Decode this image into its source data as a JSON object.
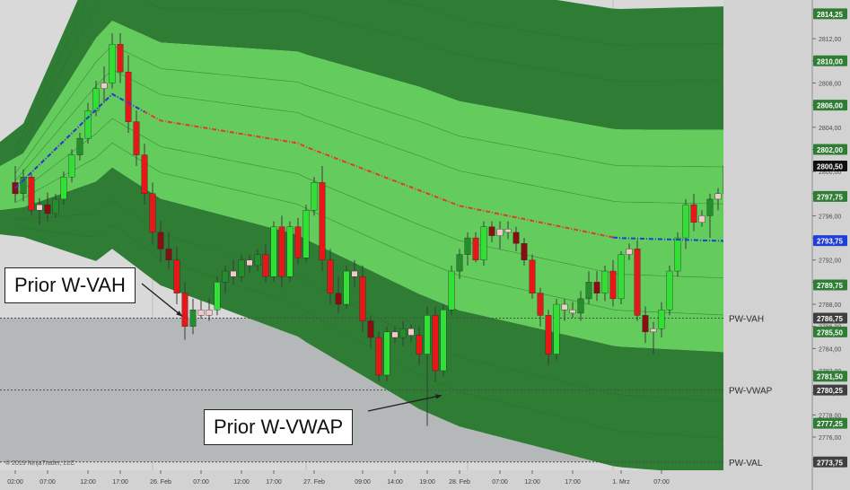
{
  "chart_data": {
    "type": "candlestick",
    "title": "",
    "copyright": "© 2019 NinjaTrader, LLC",
    "y_axis": {
      "position": "right",
      "range": [
        2773.0,
        2815.5
      ],
      "ticks": [
        "2812,00",
        "2810,00",
        "2808,00",
        "2806,00",
        "2804,00",
        "2802,00",
        "2800,00",
        "2798,00",
        "2796,00",
        "2794,00",
        "2792,00",
        "2790,00",
        "2788,00",
        "2786,00",
        "2784,00",
        "2782,00",
        "2780,00",
        "2778,00",
        "2776,00",
        "2774,00"
      ],
      "tick_values": [
        2812,
        2810,
        2808,
        2806,
        2804,
        2802,
        2800,
        2798,
        2796,
        2794,
        2792,
        2790,
        2788,
        2786,
        2784,
        2782,
        2780,
        2778,
        2776,
        2774
      ]
    },
    "x_axis": {
      "labels": [
        {
          "text": "02:00",
          "i": 0
        },
        {
          "text": "07:00",
          "i": 4
        },
        {
          "text": "12:00",
          "i": 9
        },
        {
          "text": "17:00",
          "i": 13
        },
        {
          "text": "26. Feb",
          "i": 18
        },
        {
          "text": "07:00",
          "i": 23
        },
        {
          "text": "12:00",
          "i": 28
        },
        {
          "text": "17:00",
          "i": 32
        },
        {
          "text": "27. Feb",
          "i": 37
        },
        {
          "text": "09:00",
          "i": 43
        },
        {
          "text": "14:00",
          "i": 47
        },
        {
          "text": "19:00",
          "i": 51
        },
        {
          "text": "28. Feb",
          "i": 55
        },
        {
          "text": "07:00",
          "i": 60
        },
        {
          "text": "12:00",
          "i": 64
        },
        {
          "text": "17:00",
          "i": 69
        },
        {
          "text": "1. Mrz",
          "i": 75
        },
        {
          "text": "07:00",
          "i": 80
        }
      ],
      "session_separators": [
        17,
        36,
        56,
        74
      ]
    },
    "price_labels": [
      {
        "value": "2814,25",
        "price": 2814.25,
        "style": "green"
      },
      {
        "value": "2810,00",
        "price": 2810.0,
        "style": "green"
      },
      {
        "value": "2806,00",
        "price": 2806.0,
        "style": "green"
      },
      {
        "value": "2802,00",
        "price": 2802.0,
        "style": "green"
      },
      {
        "value": "2800,50",
        "price": 2800.5,
        "style": "black"
      },
      {
        "value": "2797,75",
        "price": 2797.75,
        "style": "green"
      },
      {
        "value": "2793,75",
        "price": 2793.75,
        "style": "blue"
      },
      {
        "value": "2789,75",
        "price": 2789.75,
        "style": "green"
      },
      {
        "value": "2786,75",
        "price": 2786.75,
        "style": "gray"
      },
      {
        "value": "2785,50",
        "price": 2785.5,
        "style": "green"
      },
      {
        "value": "2781,50",
        "price": 2781.5,
        "style": "green"
      },
      {
        "value": "2780,25",
        "price": 2780.25,
        "style": "gray"
      },
      {
        "value": "2777,25",
        "price": 2777.25,
        "style": "green"
      },
      {
        "value": "2773,75",
        "price": 2773.75,
        "style": "gray"
      }
    ],
    "levels": [
      {
        "name": "PW-VAH",
        "price": 2786.75
      },
      {
        "name": "PW-VWAP",
        "price": 2780.25
      },
      {
        "name": "PW-VAL",
        "price": 2773.75
      }
    ],
    "candles": [
      [
        2799.0,
        2800.5,
        2797.2,
        2798.0
      ],
      [
        2798.0,
        2800.2,
        2797.3,
        2799.5
      ],
      [
        2799.5,
        2799.8,
        2796.0,
        2796.5
      ],
      [
        2796.5,
        2797.6,
        2795.2,
        2797.0
      ],
      [
        2797.0,
        2798.1,
        2795.5,
        2796.2
      ],
      [
        2796.2,
        2798.0,
        2795.8,
        2797.5
      ],
      [
        2797.5,
        2800.0,
        2797.0,
        2799.5
      ],
      [
        2799.5,
        2802.0,
        2799.0,
        2801.5
      ],
      [
        2801.5,
        2803.5,
        2801.0,
        2803.0
      ],
      [
        2803.0,
        2806.2,
        2802.5,
        2805.5
      ],
      [
        2805.5,
        2808.2,
        2805.0,
        2807.5
      ],
      [
        2807.5,
        2809.5,
        2806.3,
        2808.0
      ],
      [
        2808.0,
        2812.5,
        2807.5,
        2811.5
      ],
      [
        2811.5,
        2812.5,
        2808.0,
        2809.0
      ],
      [
        2809.0,
        2810.5,
        2803.5,
        2804.5
      ],
      [
        2804.5,
        2805.5,
        2800.5,
        2801.5
      ],
      [
        2801.5,
        2802.5,
        2797.0,
        2798.0
      ],
      [
        2798.0,
        2799.0,
        2793.5,
        2794.5
      ],
      [
        2794.5,
        2795.5,
        2791.8,
        2793.0
      ],
      [
        2793.0,
        2794.5,
        2791.2,
        2792.0
      ],
      [
        2792.0,
        2793.2,
        2788.0,
        2789.0
      ],
      [
        2789.0,
        2790.0,
        2784.8,
        2786.0
      ],
      [
        2786.0,
        2788.5,
        2785.3,
        2787.5
      ],
      [
        2787.5,
        2788.4,
        2786.7,
        2787.0
      ],
      [
        2787.0,
        2788.5,
        2786.5,
        2787.5
      ],
      [
        2787.5,
        2790.5,
        2787.0,
        2790.0
      ],
      [
        2790.0,
        2791.5,
        2789.0,
        2791.0
      ],
      [
        2791.0,
        2792.0,
        2789.8,
        2790.5
      ],
      [
        2790.5,
        2792.5,
        2790.0,
        2792.0
      ],
      [
        2792.0,
        2792.5,
        2790.8,
        2791.5
      ],
      [
        2791.5,
        2793.0,
        2791.0,
        2792.5
      ],
      [
        2792.5,
        2793.5,
        2790.0,
        2790.5
      ],
      [
        2790.5,
        2795.5,
        2790.0,
        2795.0
      ],
      [
        2795.0,
        2796.0,
        2789.5,
        2790.5
      ],
      [
        2790.5,
        2795.5,
        2790.0,
        2795.0
      ],
      [
        2795.0,
        2795.8,
        2791.6,
        2792.2
      ],
      [
        2792.2,
        2797.0,
        2791.8,
        2796.5
      ],
      [
        2796.5,
        2799.5,
        2796.0,
        2799.0
      ],
      [
        2799.0,
        2800.5,
        2791.0,
        2792.0
      ],
      [
        2792.0,
        2793.0,
        2788.0,
        2789.0
      ],
      [
        2789.0,
        2790.5,
        2787.2,
        2788.0
      ],
      [
        2788.0,
        2791.5,
        2787.6,
        2791.0
      ],
      [
        2791.0,
        2792.0,
        2789.5,
        2790.5
      ],
      [
        2790.5,
        2791.5,
        2785.5,
        2786.5
      ],
      [
        2786.5,
        2787.0,
        2784.0,
        2785.0
      ],
      [
        2785.0,
        2785.5,
        2781.0,
        2781.6
      ],
      [
        2781.6,
        2786.0,
        2781.0,
        2785.5
      ],
      [
        2785.5,
        2786.0,
        2784.5,
        2785.0
      ],
      [
        2785.0,
        2786.5,
        2784.2,
        2785.8
      ],
      [
        2785.8,
        2786.2,
        2784.6,
        2785.2
      ],
      [
        2785.2,
        2786.0,
        2782.5,
        2783.5
      ],
      [
        2783.5,
        2787.8,
        2777.0,
        2787.0
      ],
      [
        2787.0,
        2787.8,
        2781.0,
        2782.0
      ],
      [
        2782.0,
        2788.0,
        2781.5,
        2787.5
      ],
      [
        2787.5,
        2791.5,
        2787.0,
        2791.0
      ],
      [
        2791.0,
        2793.0,
        2790.3,
        2792.5
      ],
      [
        2792.5,
        2794.5,
        2791.5,
        2794.0
      ],
      [
        2794.0,
        2794.5,
        2791.8,
        2792.0
      ],
      [
        2792.0,
        2795.5,
        2791.5,
        2795.0
      ],
      [
        2795.0,
        2795.5,
        2793.6,
        2794.2
      ],
      [
        2794.2,
        2795.5,
        2793.0,
        2794.8
      ],
      [
        2794.8,
        2795.5,
        2793.9,
        2794.5
      ],
      [
        2794.5,
        2795.0,
        2792.8,
        2793.5
      ],
      [
        2793.5,
        2794.0,
        2791.5,
        2792.0
      ],
      [
        2792.0,
        2792.5,
        2788.5,
        2789.0
      ],
      [
        2789.0,
        2789.5,
        2786.0,
        2787.0
      ],
      [
        2787.0,
        2787.5,
        2782.5,
        2783.5
      ],
      [
        2783.5,
        2788.5,
        2783.0,
        2788.0
      ],
      [
        2788.0,
        2788.5,
        2786.5,
        2787.5
      ],
      [
        2787.5,
        2788.2,
        2786.8,
        2787.2
      ],
      [
        2787.2,
        2789.2,
        2786.5,
        2788.5
      ],
      [
        2788.5,
        2791.0,
        2788.0,
        2790.0
      ],
      [
        2790.0,
        2791.0,
        2788.3,
        2789.0
      ],
      [
        2789.0,
        2791.5,
        2788.3,
        2791.0
      ],
      [
        2791.0,
        2792.0,
        2787.8,
        2788.5
      ],
      [
        2788.5,
        2792.8,
        2788.0,
        2792.5
      ],
      [
        2792.5,
        2793.5,
        2792.0,
        2793.0
      ],
      [
        2793.0,
        2793.8,
        2786.5,
        2787.0
      ],
      [
        2787.0,
        2787.8,
        2784.5,
        2785.5
      ],
      [
        2785.5,
        2786.4,
        2783.5,
        2785.8
      ],
      [
        2785.8,
        2788.2,
        2785.0,
        2787.5
      ],
      [
        2787.5,
        2791.5,
        2787.0,
        2791.0
      ],
      [
        2791.0,
        2794.5,
        2790.5,
        2794.0
      ],
      [
        2794.0,
        2797.5,
        2793.0,
        2797.0
      ],
      [
        2797.0,
        2798.0,
        2794.6,
        2795.4
      ],
      [
        2795.4,
        2796.5,
        2795.0,
        2796.0
      ],
      [
        2796.0,
        2798.0,
        2794.0,
        2797.5
      ],
      [
        2797.5,
        2798.5,
        2796.5,
        2798.0
      ],
      [
        2798.0,
        2801.0,
        2797.5,
        2800.5
      ]
    ]
  },
  "callouts": {
    "vah": "Prior W-VAH",
    "vwap": "Prior W-VWAP"
  },
  "colors": {
    "background": "#d9d9d9",
    "band_light": "#64cc5c",
    "band_dark": "#2f7d34",
    "prior_week_zone": "#b4b8b8",
    "vwap_red": "#e23b24",
    "vwap_blue": "#1f3fd8",
    "candle_up": "#31e034",
    "candle_up_dark": "#248e2c",
    "candle_down": "#e81616",
    "candle_down_dark": "#8a0d12",
    "candle_neutral": "#f2c8c8"
  }
}
